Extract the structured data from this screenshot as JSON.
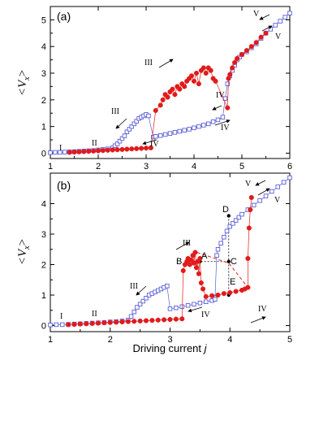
{
  "figure": {
    "xlabel_prefix": "Driving current ",
    "xlabel_var": "j",
    "ylabel_main": "<V",
    "ylabel_sub": "x",
    "ylabel_close": ">"
  },
  "colors": {
    "open_square_series": "#5a5fd6",
    "filled_circle_series": "#e01b1b",
    "axis": "#000000"
  },
  "chart_data": [
    {
      "type": "scatter",
      "panel_label": "(a)",
      "xlim": [
        1,
        6
      ],
      "ylim": [
        -0.2,
        5.5
      ],
      "x_ticks": [
        "1",
        "2",
        "3",
        "4",
        "5",
        "6"
      ],
      "y_ticks": [
        "0",
        "1",
        "2",
        "3",
        "4",
        "5"
      ],
      "series": [
        {
          "marker": "open-square",
          "color": "#5a5fd6",
          "points": [
            [
              1.0,
              0.02
            ],
            [
              1.1,
              0.03
            ],
            [
              1.2,
              0.03
            ],
            [
              1.3,
              0.04
            ],
            [
              1.4,
              0.05
            ],
            [
              1.5,
              0.06
            ],
            [
              1.6,
              0.07
            ],
            [
              1.7,
              0.08
            ],
            [
              1.8,
              0.09
            ],
            [
              1.9,
              0.1
            ],
            [
              2.0,
              0.12
            ],
            [
              2.1,
              0.14
            ],
            [
              2.2,
              0.16
            ],
            [
              2.3,
              0.2
            ],
            [
              2.35,
              0.28
            ],
            [
              2.4,
              0.35
            ],
            [
              2.45,
              0.45
            ],
            [
              2.5,
              0.55
            ],
            [
              2.55,
              0.65
            ],
            [
              2.6,
              0.8
            ],
            [
              2.65,
              0.9
            ],
            [
              2.7,
              1.0
            ],
            [
              2.75,
              1.1
            ],
            [
              2.8,
              1.2
            ],
            [
              2.85,
              1.3
            ],
            [
              2.9,
              1.35
            ],
            [
              2.95,
              1.4
            ],
            [
              3.0,
              1.45
            ],
            [
              3.05,
              1.4
            ],
            [
              3.15,
              0.6
            ],
            [
              3.2,
              0.63
            ],
            [
              3.3,
              0.66
            ],
            [
              3.4,
              0.7
            ],
            [
              3.5,
              0.74
            ],
            [
              3.6,
              0.78
            ],
            [
              3.7,
              0.82
            ],
            [
              3.8,
              0.86
            ],
            [
              3.9,
              0.9
            ],
            [
              4.0,
              0.95
            ],
            [
              4.1,
              1.0
            ],
            [
              4.2,
              1.05
            ],
            [
              4.3,
              1.1
            ],
            [
              4.4,
              1.18
            ],
            [
              4.5,
              1.25
            ],
            [
              4.6,
              1.35
            ],
            [
              4.65,
              2.05
            ],
            [
              4.7,
              2.6
            ],
            [
              4.75,
              2.9
            ],
            [
              4.8,
              3.1
            ],
            [
              4.85,
              3.3
            ],
            [
              4.9,
              3.5
            ],
            [
              4.95,
              3.6
            ],
            [
              5.0,
              3.7
            ],
            [
              5.1,
              3.8
            ],
            [
              5.2,
              3.95
            ],
            [
              5.3,
              4.1
            ],
            [
              5.4,
              4.3
            ],
            [
              5.5,
              4.5
            ],
            [
              5.6,
              4.65
            ],
            [
              5.7,
              4.8
            ],
            [
              5.8,
              4.95
            ],
            [
              5.9,
              5.1
            ],
            [
              6.0,
              5.25
            ]
          ]
        },
        {
          "marker": "filled-circle",
          "color": "#e01b1b",
          "points": [
            [
              1.4,
              0.03
            ],
            [
              1.5,
              0.04
            ],
            [
              1.6,
              0.05
            ],
            [
              1.7,
              0.06
            ],
            [
              1.8,
              0.07
            ],
            [
              1.9,
              0.08
            ],
            [
              2.0,
              0.09
            ],
            [
              2.1,
              0.1
            ],
            [
              2.2,
              0.11
            ],
            [
              2.3,
              0.12
            ],
            [
              2.4,
              0.13
            ],
            [
              2.5,
              0.14
            ],
            [
              2.6,
              0.15
            ],
            [
              2.7,
              0.16
            ],
            [
              2.8,
              0.17
            ],
            [
              2.9,
              0.18
            ],
            [
              3.0,
              0.19
            ],
            [
              3.1,
              0.2
            ],
            [
              3.2,
              1.6
            ],
            [
              3.3,
              1.8
            ],
            [
              3.35,
              2.0
            ],
            [
              3.4,
              2.2
            ],
            [
              3.45,
              2.1
            ],
            [
              3.5,
              2.3
            ],
            [
              3.55,
              2.4
            ],
            [
              3.6,
              2.2
            ],
            [
              3.65,
              2.5
            ],
            [
              3.7,
              2.4
            ],
            [
              3.75,
              2.6
            ],
            [
              3.8,
              2.5
            ],
            [
              3.85,
              2.7
            ],
            [
              3.9,
              2.8
            ],
            [
              3.95,
              2.9
            ],
            [
              4.0,
              2.7
            ],
            [
              4.05,
              3.0
            ],
            [
              4.1,
              2.6
            ],
            [
              4.15,
              3.1
            ],
            [
              4.2,
              3.2
            ],
            [
              4.25,
              3.0
            ],
            [
              4.3,
              3.2
            ],
            [
              4.35,
              3.1
            ],
            [
              4.4,
              2.8
            ],
            [
              4.45,
              2.7
            ],
            [
              4.7,
              1.7
            ],
            [
              4.72,
              2.8
            ],
            [
              4.75,
              2.95
            ],
            [
              4.8,
              3.2
            ],
            [
              4.85,
              3.4
            ],
            [
              4.9,
              3.55
            ],
            [
              5.0,
              3.7
            ],
            [
              5.1,
              3.85
            ],
            [
              5.2,
              4.0
            ],
            [
              5.3,
              4.15
            ],
            [
              5.4,
              4.35
            ],
            [
              5.5,
              4.5
            ]
          ]
        }
      ],
      "regime_labels": [
        "I",
        "II",
        "III",
        "IV",
        "IV",
        "IV",
        "V",
        "V",
        "III"
      ]
    },
    {
      "type": "scatter",
      "panel_label": "(b)",
      "xlim": [
        1,
        5
      ],
      "ylim": [
        -0.2,
        5.0
      ],
      "x_ticks": [
        "1",
        "2",
        "3",
        "4",
        "5"
      ],
      "y_ticks": [
        "0",
        "1",
        "2",
        "3",
        "4"
      ],
      "series": [
        {
          "marker": "open-square",
          "color": "#5a5fd6",
          "points": [
            [
              1.0,
              0.02
            ],
            [
              1.1,
              0.03
            ],
            [
              1.2,
              0.03
            ],
            [
              1.3,
              0.04
            ],
            [
              1.4,
              0.05
            ],
            [
              1.5,
              0.06
            ],
            [
              1.6,
              0.07
            ],
            [
              1.7,
              0.08
            ],
            [
              1.8,
              0.09
            ],
            [
              1.9,
              0.1
            ],
            [
              2.0,
              0.12
            ],
            [
              2.1,
              0.13
            ],
            [
              2.2,
              0.15
            ],
            [
              2.3,
              0.18
            ],
            [
              2.35,
              0.3
            ],
            [
              2.4,
              0.45
            ],
            [
              2.45,
              0.6
            ],
            [
              2.5,
              0.7
            ],
            [
              2.55,
              0.8
            ],
            [
              2.6,
              0.9
            ],
            [
              2.65,
              1.0
            ],
            [
              2.7,
              1.05
            ],
            [
              2.75,
              1.1
            ],
            [
              2.8,
              1.15
            ],
            [
              2.85,
              1.2
            ],
            [
              2.9,
              1.25
            ],
            [
              2.95,
              1.3
            ],
            [
              3.0,
              0.55
            ],
            [
              3.1,
              0.58
            ],
            [
              3.2,
              0.62
            ],
            [
              3.3,
              0.66
            ],
            [
              3.4,
              0.7
            ],
            [
              3.5,
              0.74
            ],
            [
              3.6,
              0.78
            ],
            [
              3.7,
              0.82
            ],
            [
              3.75,
              0.86
            ],
            [
              3.78,
              2.3
            ],
            [
              3.8,
              2.5
            ],
            [
              3.85,
              2.7
            ],
            [
              3.9,
              2.9
            ],
            [
              3.95,
              3.1
            ],
            [
              4.0,
              3.25
            ],
            [
              4.05,
              3.35
            ],
            [
              4.1,
              3.45
            ],
            [
              4.15,
              3.55
            ],
            [
              4.2,
              3.65
            ],
            [
              4.3,
              3.8
            ],
            [
              4.4,
              3.95
            ],
            [
              4.5,
              4.1
            ],
            [
              4.6,
              4.25
            ],
            [
              4.7,
              4.4
            ],
            [
              4.8,
              4.55
            ],
            [
              4.9,
              4.7
            ],
            [
              5.0,
              4.85
            ]
          ]
        },
        {
          "marker": "filled-circle",
          "color": "#e01b1b",
          "points": [
            [
              1.3,
              0.03
            ],
            [
              1.4,
              0.04
            ],
            [
              1.5,
              0.05
            ],
            [
              1.6,
              0.06
            ],
            [
              1.7,
              0.07
            ],
            [
              1.8,
              0.08
            ],
            [
              1.9,
              0.09
            ],
            [
              2.0,
              0.1
            ],
            [
              2.1,
              0.11
            ],
            [
              2.2,
              0.12
            ],
            [
              2.3,
              0.13
            ],
            [
              2.4,
              0.14
            ],
            [
              2.5,
              0.15
            ],
            [
              2.6,
              0.16
            ],
            [
              2.7,
              0.17
            ],
            [
              2.8,
              0.18
            ],
            [
              2.9,
              0.19
            ],
            [
              3.0,
              0.2
            ],
            [
              3.1,
              0.21
            ],
            [
              3.2,
              0.22
            ],
            [
              3.22,
              1.8
            ],
            [
              3.25,
              2.0
            ],
            [
              3.28,
              2.1
            ],
            [
              3.3,
              2.2
            ],
            [
              3.33,
              2.0
            ],
            [
              3.35,
              2.15
            ],
            [
              3.38,
              2.3
            ],
            [
              3.4,
              2.05
            ],
            [
              3.42,
              2.4
            ],
            [
              3.44,
              1.9
            ],
            [
              3.46,
              2.1
            ],
            [
              3.48,
              1.7
            ],
            [
              3.5,
              2.2
            ],
            [
              3.52,
              1.4
            ],
            [
              3.55,
              1.2
            ],
            [
              3.6,
              0.95
            ],
            [
              3.7,
              0.98
            ],
            [
              3.8,
              1.0
            ],
            [
              3.9,
              1.05
            ],
            [
              4.0,
              1.08
            ],
            [
              4.1,
              1.12
            ],
            [
              4.2,
              1.16
            ],
            [
              4.25,
              1.2
            ],
            [
              4.3,
              1.25
            ],
            [
              4.3,
              2.2
            ],
            [
              4.32,
              3.2
            ],
            [
              4.34,
              3.8
            ],
            [
              4.36,
              4.2
            ]
          ]
        }
      ],
      "point_labels": [
        "B",
        "A",
        "C",
        "D",
        "E"
      ],
      "regime_labels": [
        "I",
        "II",
        "III",
        "III",
        "IV",
        "IV",
        "V",
        "V"
      ]
    }
  ]
}
